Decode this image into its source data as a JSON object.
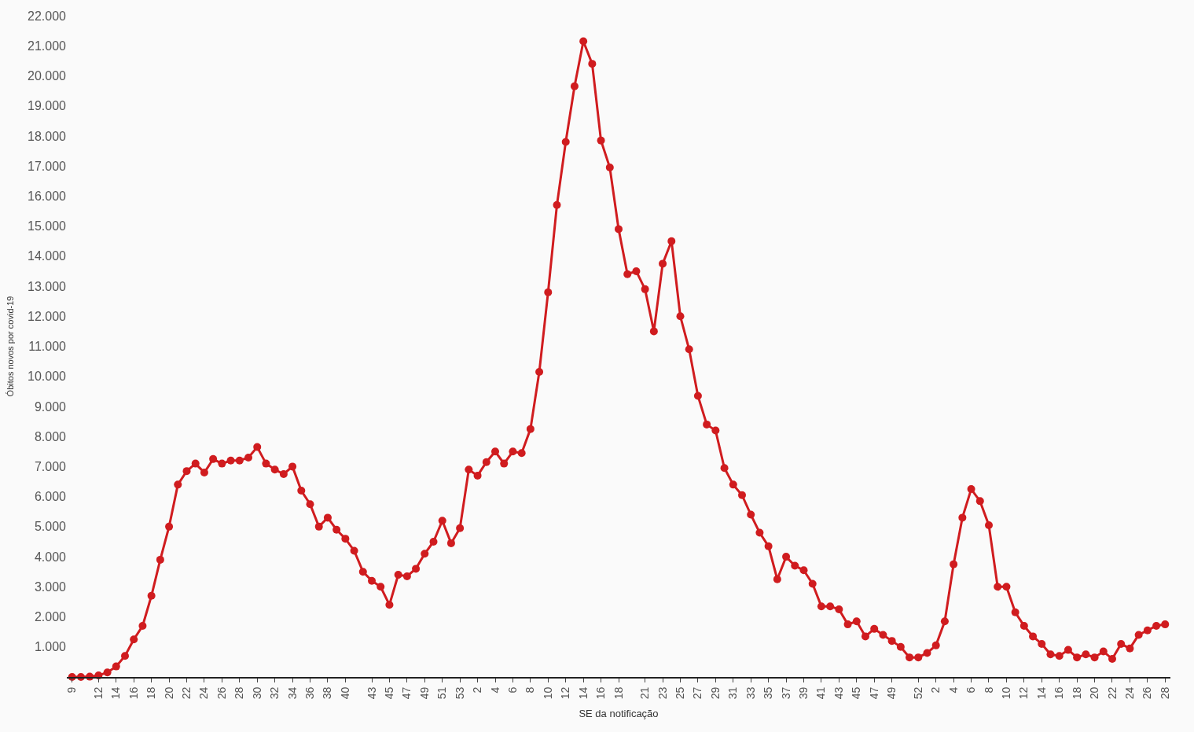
{
  "chart_data": {
    "type": "line",
    "xlabel": "SE da notificação",
    "ylabel": "Óbitos novos por covid-19",
    "categories": [
      "9",
      null,
      null,
      "12",
      null,
      "14",
      null,
      "16",
      null,
      "18",
      null,
      "20",
      null,
      "22",
      null,
      "24",
      null,
      "26",
      null,
      "28",
      null,
      "30",
      null,
      "32",
      null,
      "34",
      null,
      "36",
      null,
      "38",
      null,
      "40",
      null,
      null,
      "43",
      null,
      "45",
      null,
      "47",
      null,
      "49",
      null,
      "51",
      null,
      "53",
      null,
      "2",
      null,
      "4",
      null,
      "6",
      null,
      "8",
      null,
      "10",
      null,
      "12",
      null,
      "14",
      null,
      "16",
      null,
      "18",
      null,
      null,
      "21",
      null,
      "23",
      null,
      "25",
      null,
      "27",
      null,
      "29",
      null,
      "31",
      null,
      "33",
      null,
      "35",
      null,
      "37",
      null,
      "39",
      null,
      "41",
      null,
      "43",
      null,
      "45",
      null,
      "47",
      null,
      "49",
      null,
      null,
      "52",
      null,
      "2",
      null,
      "4",
      null,
      "6",
      null,
      "8",
      null,
      "10",
      null,
      "12",
      null,
      "14",
      null,
      "16",
      null,
      "18",
      null,
      "20",
      null,
      "22",
      null,
      "24",
      null,
      "26",
      null,
      "28"
    ],
    "series": [
      {
        "color": "#d01c1f",
        "values": [
          0,
          0,
          10,
          50,
          150,
          350,
          700,
          1250,
          1700,
          2700,
          3900,
          5000,
          6400,
          6850,
          7100,
          6800,
          7250,
          7100,
          7200,
          7200,
          7300,
          7650,
          7100,
          6900,
          6750,
          7000,
          6200,
          5750,
          5000,
          5300,
          4900,
          4600,
          4200,
          3500,
          3200,
          3000,
          2400,
          3400,
          3350,
          3600,
          4100,
          4500,
          5200,
          4450,
          4950,
          6900,
          6700,
          7150,
          7500,
          7100,
          7500,
          7450,
          8250,
          10150,
          12800,
          15700,
          17800,
          19650,
          21150,
          20400,
          17850,
          16950,
          14900,
          13400,
          13500,
          12900,
          11500,
          13750,
          14500,
          12000,
          10900,
          9350,
          8400,
          8200,
          6950,
          6400,
          6050,
          5400,
          4800,
          4350,
          3250,
          4000,
          3700,
          3550,
          3100,
          2350,
          2350,
          2250,
          1750,
          1850,
          1350,
          1600,
          1400,
          1200,
          1000,
          650,
          650,
          800,
          1050,
          1850,
          3750,
          5300,
          6250,
          5850,
          5050,
          3000,
          3000,
          2150,
          1700,
          1350,
          1100,
          750,
          700,
          900,
          650,
          750,
          650,
          850,
          600,
          1100,
          950,
          1400,
          1550,
          1700,
          1750
        ]
      }
    ],
    "ylim": [
      0,
      22000
    ],
    "yticks": [
      {
        "value": 1000,
        "label": "1.000"
      },
      {
        "value": 2000,
        "label": "2.000"
      },
      {
        "value": 3000,
        "label": "3.000"
      },
      {
        "value": 4000,
        "label": "4.000"
      },
      {
        "value": 5000,
        "label": "5.000"
      },
      {
        "value": 6000,
        "label": "6.000"
      },
      {
        "value": 7000,
        "label": "7.000"
      },
      {
        "value": 8000,
        "label": "8.000"
      },
      {
        "value": 9000,
        "label": "9.000"
      },
      {
        "value": 10000,
        "label": "10.000"
      },
      {
        "value": 11000,
        "label": "11.000"
      },
      {
        "value": 12000,
        "label": "12.000"
      },
      {
        "value": 13000,
        "label": "13.000"
      },
      {
        "value": 14000,
        "label": "14.000"
      },
      {
        "value": 15000,
        "label": "15.000"
      },
      {
        "value": 16000,
        "label": "16.000"
      },
      {
        "value": 17000,
        "label": "17.000"
      },
      {
        "value": 18000,
        "label": "18.000"
      },
      {
        "value": 19000,
        "label": "19.000"
      },
      {
        "value": 20000,
        "label": "20.000"
      },
      {
        "value": 21000,
        "label": "21.000"
      },
      {
        "value": 22000,
        "label": "22.000"
      }
    ],
    "marker": "circle",
    "line_style": "solid"
  }
}
